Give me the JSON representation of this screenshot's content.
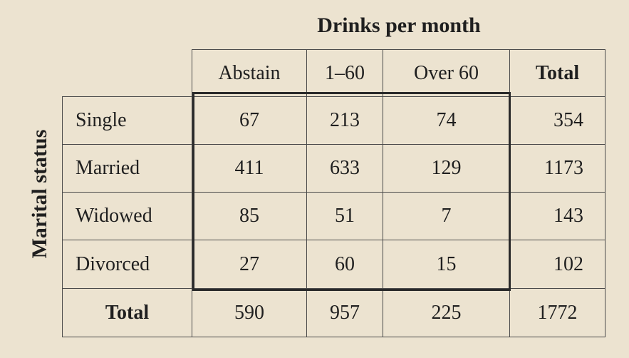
{
  "column_header": "Drinks per month",
  "row_header": "Marital status",
  "columns": [
    "Abstain",
    "1–60",
    "Over 60",
    "Total"
  ],
  "rows": [
    {
      "label": "Single",
      "values": [
        "67",
        "213",
        "74",
        "354"
      ]
    },
    {
      "label": "Married",
      "values": [
        "411",
        "633",
        "129",
        "1173"
      ]
    },
    {
      "label": "Widowed",
      "values": [
        "85",
        "51",
        "7",
        "143"
      ]
    },
    {
      "label": "Divorced",
      "values": [
        "27",
        "60",
        "15",
        "102"
      ]
    }
  ],
  "total_row": {
    "label": "Total",
    "values": [
      "590",
      "957",
      "225",
      "1772"
    ]
  }
}
